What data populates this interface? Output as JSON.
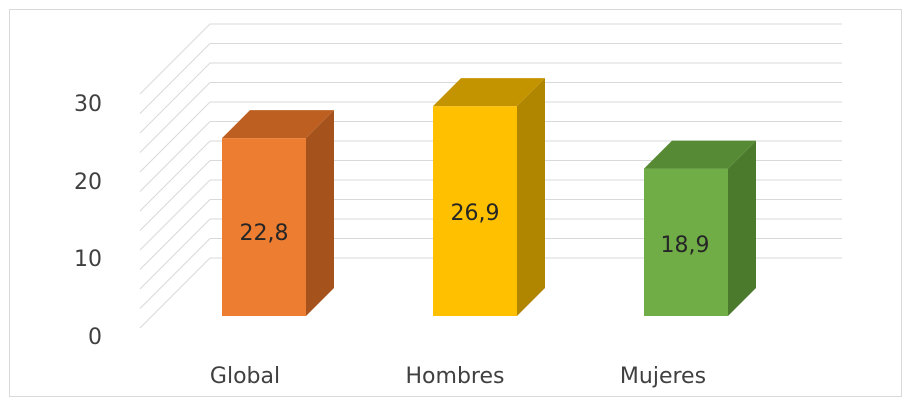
{
  "chart_data": {
    "type": "bar",
    "categories": [
      "Global",
      "Hombres",
      "Mujeres"
    ],
    "values": [
      22.8,
      26.9,
      18.9
    ],
    "value_labels": [
      "22,8",
      "26,9",
      "18,9"
    ],
    "yticks": [
      "0",
      "10",
      "20",
      "30"
    ],
    "ylim": [
      0,
      30
    ],
    "grid": true,
    "colors": {
      "front": [
        "#ed7d31",
        "#ffc000",
        "#70ad47"
      ],
      "side": [
        "#a5521c",
        "#b08600",
        "#4b7a2c"
      ],
      "top": [
        "#bd5f21",
        "#c49400",
        "#568a35"
      ],
      "grid": "#d9d9d9"
    }
  }
}
